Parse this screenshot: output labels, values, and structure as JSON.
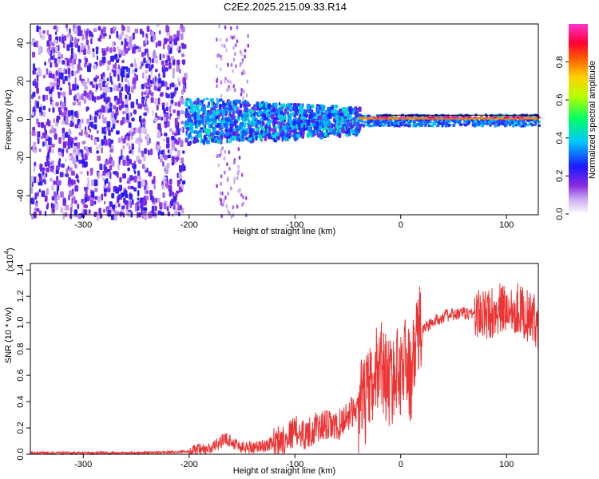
{
  "title": "C2E2.2025.215.09.33.R14",
  "chart_data": [
    {
      "type": "heatmap",
      "xlabel": "Height of straight line (km)",
      "ylabel": "Frequency (Hz)",
      "xlim": [
        -350,
        130
      ],
      "ylim": [
        -50,
        50
      ],
      "xticks": [
        -300,
        -200,
        -100,
        0,
        100
      ],
      "yticks": [
        -40,
        -20,
        0,
        20,
        40
      ],
      "colorbar": {
        "label": "Normalized spectral amplitude",
        "range": [
          0,
          1
        ],
        "ticks": [
          0.0,
          0.2,
          0.4,
          0.6,
          0.8
        ],
        "colors": [
          "#ffffff",
          "#8a2be2",
          "#0000ff",
          "#00ffff",
          "#00ff00",
          "#ffff00",
          "#ff8000",
          "#ff0000",
          "#ff00ff"
        ]
      },
      "regions": [
        {
          "x": [
            -350,
            -205
          ],
          "freq_spread": [
            -50,
            50
          ],
          "amplitude": [
            0.05,
            0.25
          ]
        },
        {
          "x": [
            -205,
            -40
          ],
          "freq_spread": [
            -12,
            12
          ],
          "amplitude": [
            0.15,
            0.45
          ]
        },
        {
          "x": [
            -40,
            130
          ],
          "freq_spread": [
            -3,
            3
          ],
          "amplitude": [
            0.4,
            1.0
          ]
        }
      ]
    },
    {
      "type": "line",
      "xlabel": "Height of straight line (km)",
      "ylabel": "SNR (10 * v/v)",
      "y_scale_label": "(x10",
      "y_scale_exp": "4",
      "xlim": [
        -350,
        130
      ],
      "ylim": [
        0,
        1.45
      ],
      "xticks": [
        -300,
        -200,
        -100,
        0,
        100
      ],
      "yticks": [
        0.0,
        0.2,
        0.4,
        0.6,
        0.8,
        1.0,
        1.2,
        1.4
      ],
      "series": [
        {
          "color": "#ee3333",
          "x": [
            -350,
            -300,
            -250,
            -200,
            -180,
            -165,
            -150,
            -130,
            -110,
            -100,
            -90,
            -80,
            -70,
            -60,
            -50,
            -40,
            -30,
            -25,
            -20,
            -15,
            -10,
            -5,
            0,
            5,
            10,
            15,
            20,
            30,
            40,
            50,
            60,
            70,
            80,
            90,
            100,
            110,
            120,
            130
          ],
          "values": [
            0.01,
            0.01,
            0.01,
            0.02,
            0.04,
            0.12,
            0.05,
            0.06,
            0.12,
            0.18,
            0.15,
            0.2,
            0.22,
            0.2,
            0.3,
            0.35,
            0.45,
            0.55,
            0.75,
            0.6,
            0.55,
            0.6,
            0.65,
            0.72,
            0.55,
            0.9,
            0.95,
            1.0,
            1.05,
            1.06,
            1.07,
            1.07,
            1.05,
            1.1,
            1.1,
            1.12,
            1.05,
            1.0
          ]
        }
      ]
    }
  ]
}
